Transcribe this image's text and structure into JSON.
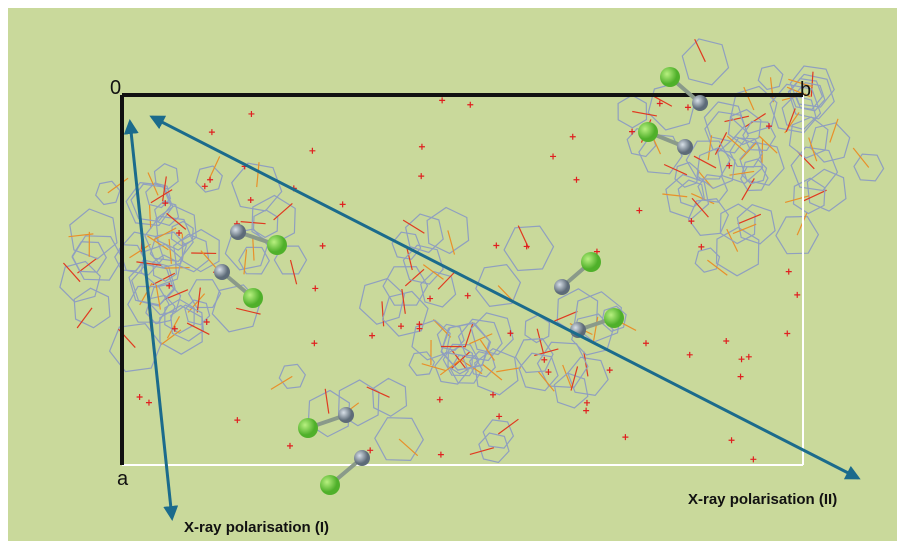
{
  "labels": {
    "origin": "0",
    "b_axis": "b",
    "a_axis": "a"
  },
  "arrows": {
    "polarisation_1": "X-ray polarisation (I)",
    "polarisation_2": "X-ray polarisation (II)"
  }
}
